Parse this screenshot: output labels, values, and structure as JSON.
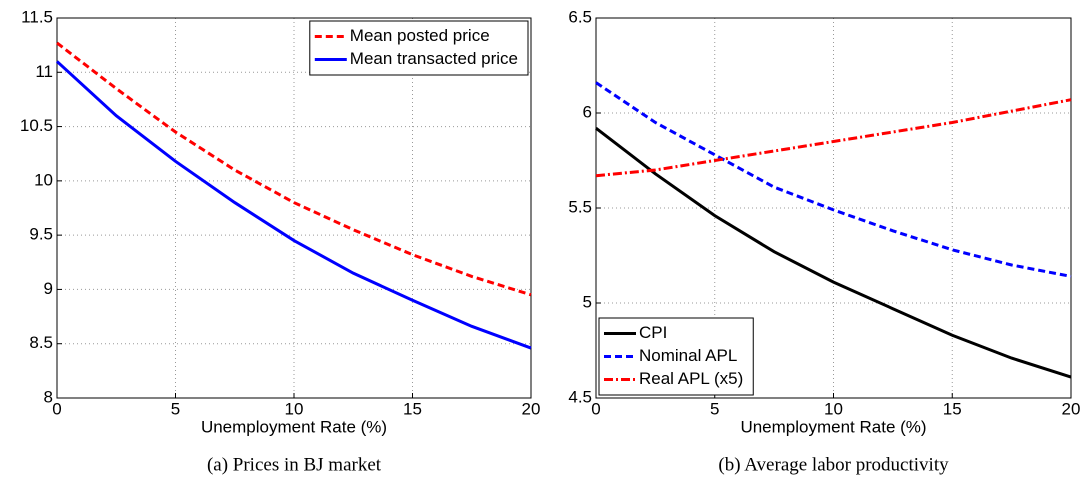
{
  "chart_data": [
    {
      "type": "line",
      "caption": "(a) Prices in BJ market",
      "x_label": "Unemployment Rate (%)",
      "x": [
        0,
        2.5,
        5,
        7.5,
        10,
        12.5,
        15,
        17.5,
        20
      ],
      "xlim": [
        0,
        20
      ],
      "xticks": [
        0,
        5,
        10,
        15,
        20
      ],
      "ylim": [
        8,
        11.5
      ],
      "yticks": [
        8,
        8.5,
        9,
        9.5,
        10,
        10.5,
        11,
        11.5
      ],
      "grid": true,
      "legend": "upper right",
      "series": [
        {
          "name": "Mean posted price",
          "color": "#ff0000",
          "linestyle": "dashed",
          "values": [
            11.27,
            10.85,
            10.45,
            10.1,
            9.8,
            9.55,
            9.32,
            9.12,
            8.95
          ]
        },
        {
          "name": "Mean transacted price",
          "color": "#0000ff",
          "linestyle": "solid",
          "values": [
            11.1,
            10.6,
            10.18,
            9.8,
            9.45,
            9.15,
            8.9,
            8.66,
            8.46
          ]
        }
      ]
    },
    {
      "type": "line",
      "caption": "(b) Average labor productivity",
      "x_label": "Unemployment Rate (%)",
      "x": [
        0,
        2.5,
        5,
        7.5,
        10,
        12.5,
        15,
        17.5,
        20
      ],
      "xlim": [
        0,
        20
      ],
      "xticks": [
        0,
        5,
        10,
        15,
        20
      ],
      "ylim": [
        4.5,
        6.5
      ],
      "yticks": [
        4.5,
        5,
        5.5,
        6,
        6.5
      ],
      "grid": true,
      "legend": "lower left",
      "series": [
        {
          "name": "CPI",
          "color": "#000000",
          "linestyle": "solid",
          "values": [
            5.92,
            5.68,
            5.46,
            5.27,
            5.11,
            4.97,
            4.83,
            4.71,
            4.61
          ]
        },
        {
          "name": "Nominal APL",
          "color": "#0000ff",
          "linestyle": "dashed",
          "values": [
            6.16,
            5.95,
            5.78,
            5.61,
            5.49,
            5.38,
            5.28,
            5.2,
            5.14
          ]
        },
        {
          "name": "Real APL (x5)",
          "color": "#ff0000",
          "linestyle": "dashdot",
          "values": [
            5.67,
            5.7,
            5.75,
            5.8,
            5.85,
            5.9,
            5.95,
            6.01,
            6.07
          ]
        }
      ]
    }
  ]
}
